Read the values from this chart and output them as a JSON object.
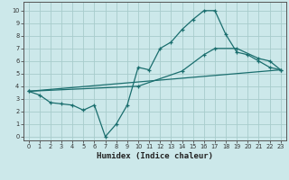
{
  "xlabel": "Humidex (Indice chaleur)",
  "bg_color": "#cce8ea",
  "grid_color": "#a8cccc",
  "line_color": "#1a6e6e",
  "xlim": [
    -0.5,
    23.5
  ],
  "ylim": [
    -0.3,
    10.7
  ],
  "xticks": [
    0,
    1,
    2,
    3,
    4,
    5,
    6,
    7,
    8,
    9,
    10,
    11,
    12,
    13,
    14,
    15,
    16,
    17,
    18,
    19,
    20,
    21,
    22,
    23
  ],
  "yticks": [
    0,
    1,
    2,
    3,
    4,
    5,
    6,
    7,
    8,
    9,
    10
  ],
  "line1_x": [
    0,
    1,
    2,
    3,
    4,
    5,
    6,
    7,
    8,
    9,
    10,
    11,
    12,
    13,
    14,
    15,
    16,
    17,
    18,
    19,
    20,
    21,
    22,
    23
  ],
  "line1_y": [
    3.6,
    3.3,
    2.7,
    2.6,
    2.5,
    2.1,
    2.5,
    0.0,
    1.0,
    2.5,
    5.5,
    5.3,
    7.0,
    7.5,
    8.5,
    9.3,
    10.0,
    10.0,
    8.1,
    6.7,
    6.5,
    6.0,
    5.5,
    5.3
  ],
  "line2_x": [
    0,
    23
  ],
  "line2_y": [
    3.6,
    5.3
  ],
  "line3_x": [
    0,
    10,
    14,
    16,
    17,
    19,
    21,
    22,
    23
  ],
  "line3_y": [
    3.6,
    4.0,
    5.2,
    6.5,
    7.0,
    7.0,
    6.2,
    6.0,
    5.3
  ]
}
